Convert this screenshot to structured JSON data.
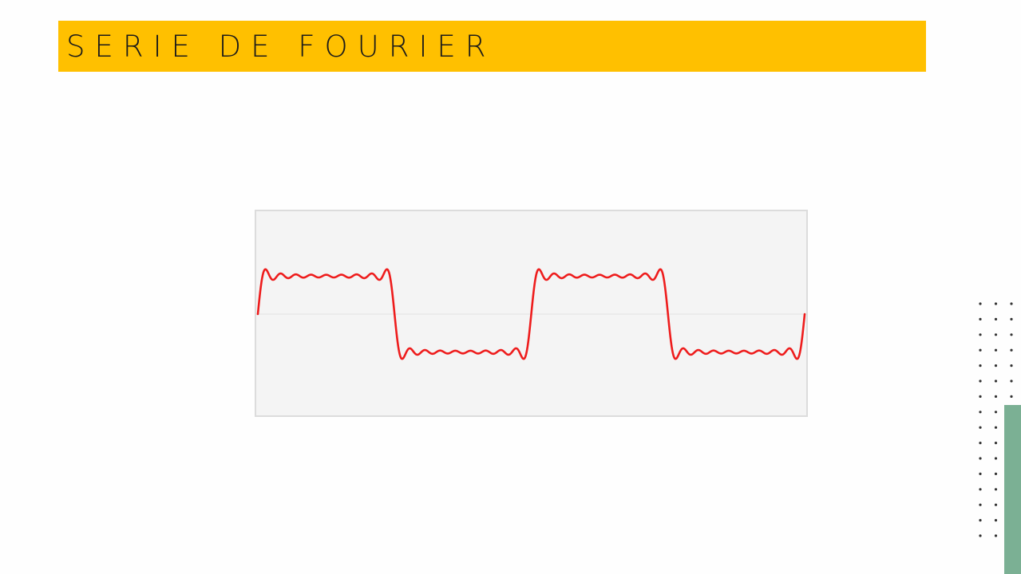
{
  "slide": {
    "title": "SERIE DE FOURIER"
  },
  "colors": {
    "title_bar": "#ffc000",
    "plot_background": "#f4f4f4",
    "plot_border": "#dcdcdc",
    "midline": "#e8e8e8",
    "wave": "#ee1c1c",
    "dots": "#333333",
    "accent_bar": "#7bb094"
  },
  "figure": {
    "description_icon": "square-wave-fourier-approximation-icon",
    "harmonics_odd_terms": 9,
    "periods_shown": 2
  }
}
